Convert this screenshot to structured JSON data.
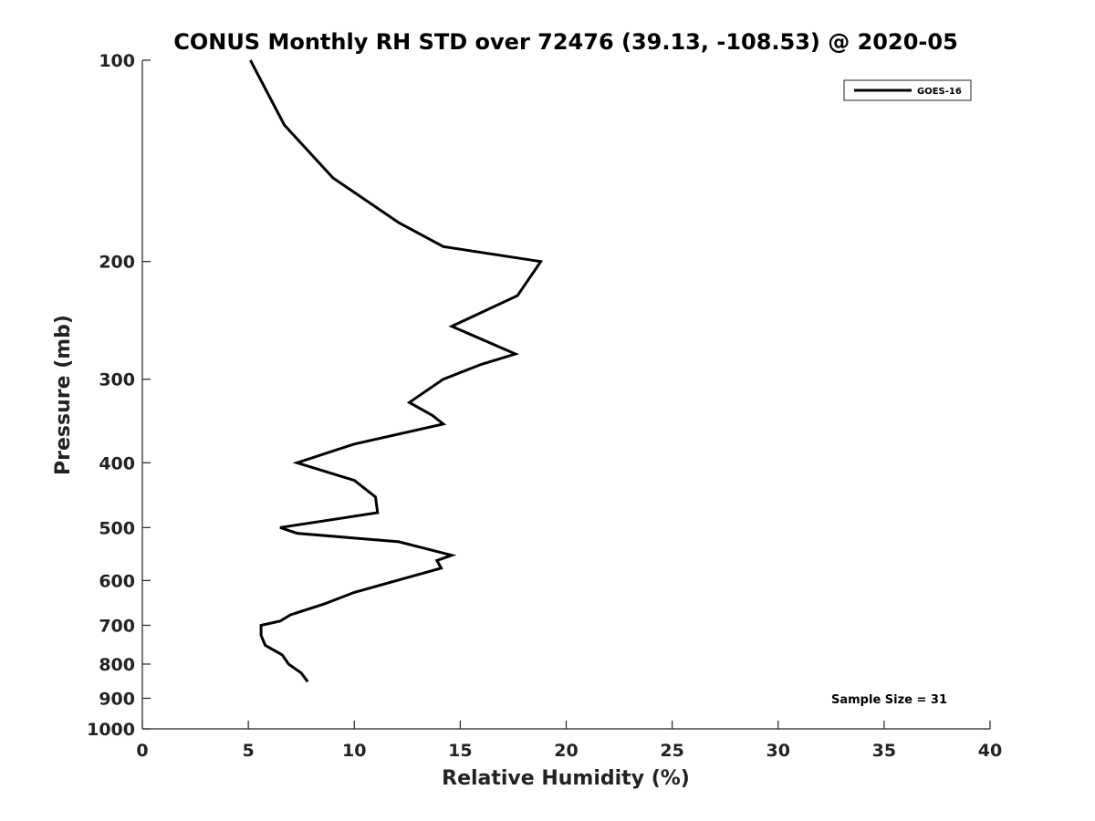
{
  "chart_data": {
    "type": "line",
    "title": "CONUS Monthly RH STD over 72476 (39.13, -108.53) @ 2020-05",
    "xlabel": "Relative Humidity (%)",
    "ylabel": "Pressure (mb)",
    "xlim": [
      0,
      40
    ],
    "ylim": [
      100,
      1000
    ],
    "y_scale": "log",
    "y_reversed": true,
    "xticks": [
      0,
      5,
      10,
      15,
      20,
      25,
      30,
      35,
      40
    ],
    "yticks": [
      100,
      200,
      300,
      400,
      500,
      600,
      700,
      800,
      900,
      1000
    ],
    "grid": false,
    "legend_position": "top-right",
    "annotation": "Sample Size = 31",
    "series": [
      {
        "name": "GOES-16",
        "color": "#000000",
        "points": [
          {
            "x": 5.1,
            "p": 100
          },
          {
            "x": 6.7,
            "p": 125
          },
          {
            "x": 9.0,
            "p": 150
          },
          {
            "x": 12.1,
            "p": 175
          },
          {
            "x": 14.2,
            "p": 190
          },
          {
            "x": 18.8,
            "p": 200
          },
          {
            "x": 17.7,
            "p": 225
          },
          {
            "x": 14.6,
            "p": 250
          },
          {
            "x": 17.6,
            "p": 275
          },
          {
            "x": 16.0,
            "p": 285
          },
          {
            "x": 14.2,
            "p": 300
          },
          {
            "x": 12.6,
            "p": 325
          },
          {
            "x": 13.7,
            "p": 340
          },
          {
            "x": 14.2,
            "p": 350
          },
          {
            "x": 10.0,
            "p": 375
          },
          {
            "x": 7.3,
            "p": 400
          },
          {
            "x": 10.0,
            "p": 425
          },
          {
            "x": 11.0,
            "p": 450
          },
          {
            "x": 11.1,
            "p": 475
          },
          {
            "x": 6.5,
            "p": 500
          },
          {
            "x": 7.3,
            "p": 510
          },
          {
            "x": 12.1,
            "p": 525
          },
          {
            "x": 14.6,
            "p": 550
          },
          {
            "x": 13.9,
            "p": 560
          },
          {
            "x": 14.1,
            "p": 575
          },
          {
            "x": 12.0,
            "p": 600
          },
          {
            "x": 10.0,
            "p": 625
          },
          {
            "x": 8.6,
            "p": 650
          },
          {
            "x": 7.0,
            "p": 675
          },
          {
            "x": 6.5,
            "p": 690
          },
          {
            "x": 5.6,
            "p": 700
          },
          {
            "x": 5.6,
            "p": 725
          },
          {
            "x": 5.8,
            "p": 750
          },
          {
            "x": 6.6,
            "p": 775
          },
          {
            "x": 6.9,
            "p": 800
          },
          {
            "x": 7.5,
            "p": 825
          },
          {
            "x": 7.8,
            "p": 850
          }
        ]
      }
    ]
  }
}
